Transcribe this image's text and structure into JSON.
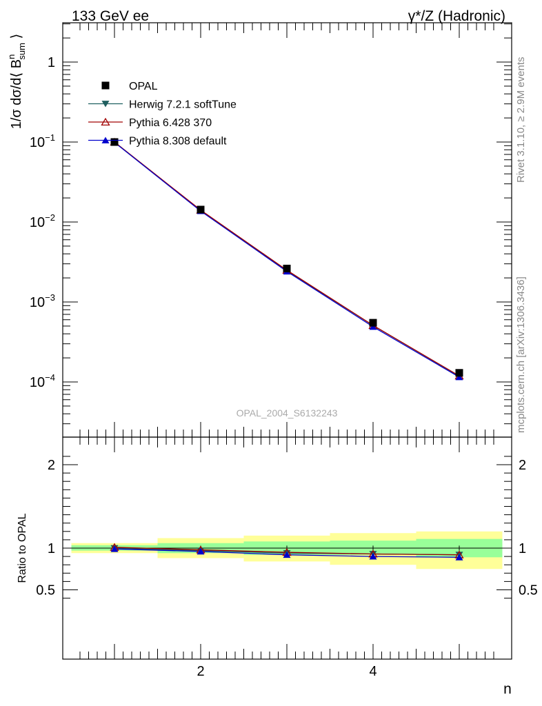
{
  "header": {
    "left": "133 GeV ee",
    "right": "γ*/Z (Hadronic)"
  },
  "side_labels": {
    "rivet": "Rivet 3.1.10, ≥ 2.9M events",
    "mcplots": "mcplots.cern.ch [arXiv:1306.3436]"
  },
  "watermark": "OPAL_2004_S6132243",
  "chart_data": [
    {
      "type": "scatter",
      "panel": "main",
      "ylabel": "1/σ dσ/d⟨ B^n_sum ⟩",
      "yscale": "log",
      "xlim": [
        0.5,
        5.5
      ],
      "ylim": [
        2.5e-05,
        3
      ],
      "yticks": [
        "10^-4",
        "10^-3",
        "10^-2",
        "10^-1",
        "1"
      ],
      "legend_position": "top-left",
      "x": [
        1,
        2,
        3,
        4,
        5
      ],
      "series": [
        {
          "name": "OPAL",
          "color": "#000000",
          "marker": "filled-square",
          "values": [
            0.1,
            0.0143,
            0.00262,
            0.00055,
            0.00013
          ]
        },
        {
          "name": "Herwig 7.2.1 softTune",
          "color": "#1f5f5f",
          "marker": "filled-triangle-down",
          "values": [
            0.1,
            0.0139,
            0.00245,
            0.00051,
            0.000118
          ]
        },
        {
          "name": "Pythia 6.428 370",
          "color": "#a00000",
          "marker": "open-triangle-up",
          "values": [
            0.1,
            0.0141,
            0.0025,
            0.00051,
            0.000119
          ]
        },
        {
          "name": "Pythia 8.308 default",
          "color": "#0000cc",
          "marker": "filled-triangle-up",
          "values": [
            0.099,
            0.0137,
            0.00241,
            0.00049,
            0.000115
          ]
        }
      ]
    },
    {
      "type": "line",
      "panel": "ratio",
      "ylabel": "Ratio to OPAL",
      "xlabel": "n",
      "xlim": [
        0.5,
        5.5
      ],
      "ylim": [
        0.35,
        2.25
      ],
      "yticks": [
        "0.5",
        "1",
        "2"
      ],
      "xticks": [
        "2",
        "4"
      ],
      "x": [
        1,
        2,
        3,
        4,
        5
      ],
      "bands": {
        "x_edges": [
          0.5,
          1.5,
          2.5,
          3.5,
          4.5,
          5.5
        ],
        "yellow": [
          [
            0.94,
            1.06
          ],
          [
            0.88,
            1.12
          ],
          [
            0.84,
            1.15
          ],
          [
            0.8,
            1.18
          ],
          [
            0.75,
            1.2
          ]
        ],
        "green": [
          [
            0.97,
            1.035
          ],
          [
            0.94,
            1.06
          ],
          [
            0.92,
            1.08
          ],
          [
            0.92,
            1.09
          ],
          [
            0.89,
            1.11
          ]
        ]
      },
      "series": [
        {
          "name": "Herwig 7.2.1 softTune",
          "color": "#1f5f5f",
          "marker": "filled-triangle-down",
          "values": [
            1.0,
            0.97,
            0.94,
            0.93,
            0.92
          ]
        },
        {
          "name": "Pythia 6.428 370",
          "color": "#a00000",
          "marker": "open-triangle-up",
          "values": [
            1.01,
            0.98,
            0.95,
            0.93,
            0.92
          ]
        },
        {
          "name": "Pythia 8.308 default",
          "color": "#0000cc",
          "marker": "filled-triangle-up",
          "values": [
            0.99,
            0.96,
            0.92,
            0.9,
            0.89
          ]
        }
      ]
    }
  ]
}
